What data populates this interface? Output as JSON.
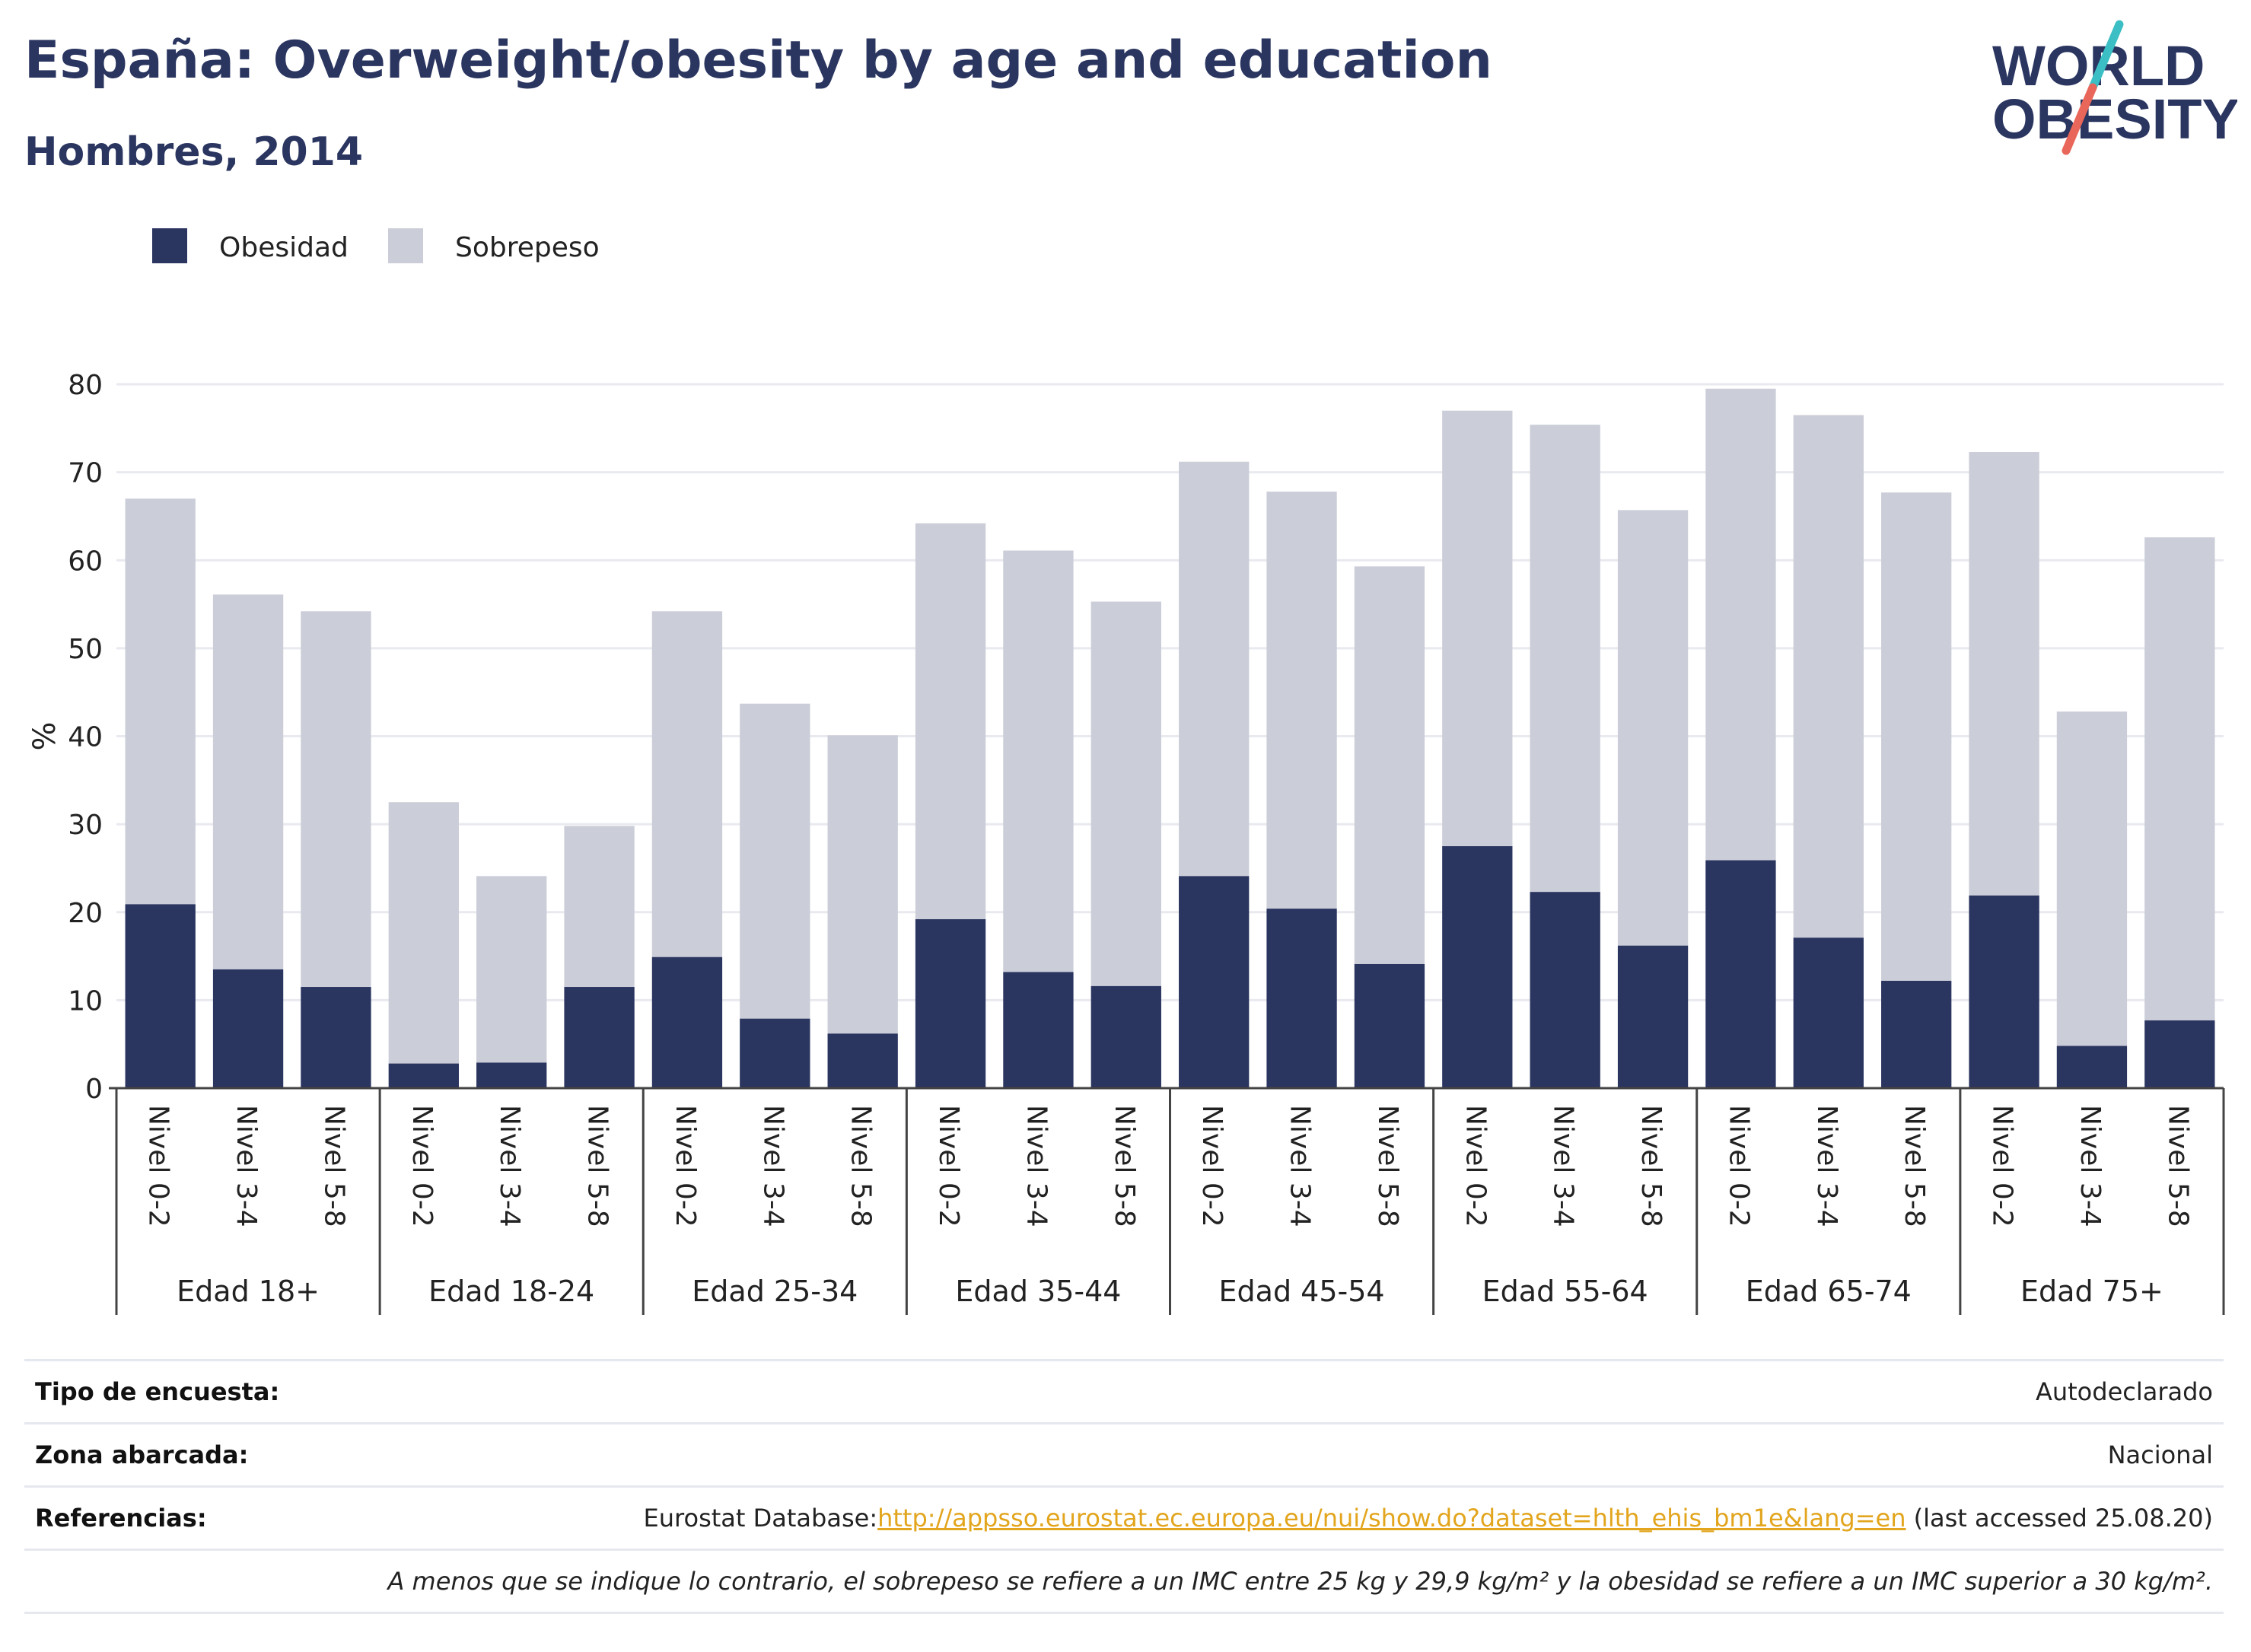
{
  "header": {
    "title": "España: Overweight/obesity by age and education",
    "subtitle": "Hombres, 2014"
  },
  "logo": {
    "line1": "WORLD",
    "line2": "OBESITY",
    "icon": "world-obesity-logo",
    "colors": {
      "text": "#2a3560",
      "slash_top": "#3bbfc4",
      "slash_bottom": "#e8665a"
    }
  },
  "chart_data": {
    "type": "bar",
    "stacked": true,
    "title": "",
    "xlabel": "",
    "ylabel": "%",
    "ylim": [
      0,
      80
    ],
    "yticks": [
      0,
      10,
      20,
      30,
      40,
      50,
      60,
      70,
      80
    ],
    "grid": true,
    "legend_position": "top-left",
    "groups": [
      "Edad 18+",
      "Edad 18-24",
      "Edad 25-34",
      "Edad 35-44",
      "Edad 45-54",
      "Edad 55-64",
      "Edad 65-74",
      "Edad 75+"
    ],
    "subcategories": [
      "Nivel 0-2",
      "Nivel 3-4",
      "Nivel 5-8"
    ],
    "series": [
      {
        "name": "Obesidad",
        "color": "#2a3560",
        "values": [
          [
            20.9,
            13.5,
            11.5
          ],
          [
            2.8,
            2.9,
            11.5
          ],
          [
            14.9,
            7.9,
            6.2
          ],
          [
            19.2,
            13.2,
            11.6
          ],
          [
            24.1,
            20.4,
            14.1
          ],
          [
            27.5,
            22.3,
            16.2
          ],
          [
            25.9,
            17.1,
            12.2
          ],
          [
            21.9,
            4.8,
            7.7
          ]
        ]
      },
      {
        "name": "Sobrepeso",
        "color": "#cbcdd8",
        "values": [
          [
            46.1,
            42.6,
            42.7
          ],
          [
            29.7,
            21.2,
            18.3
          ],
          [
            39.3,
            35.8,
            33.9
          ],
          [
            45.0,
            47.9,
            43.7
          ],
          [
            47.1,
            47.4,
            45.2
          ],
          [
            49.5,
            53.1,
            49.5
          ],
          [
            53.6,
            59.4,
            55.5
          ],
          [
            50.4,
            38.0,
            54.9
          ]
        ]
      }
    ]
  },
  "info": {
    "survey_type_label": "Tipo de encuesta:",
    "survey_type_value": "Autodeclarado",
    "area_label": "Zona abarcada:",
    "area_value": "Nacional",
    "references_label": "Referencias:",
    "references_prefix": "Eurostat Database:",
    "references_link": "http://appsso.eurostat.ec.europa.eu/nui/show.do?dataset=hlth_ehis_bm1e&lang=en",
    "references_suffix": " (last accessed 25.08.20)",
    "note": "A menos que se indique lo contrario, el sobrepeso se refiere a un IMC entre 25 kg y 29,9 kg/m² y la obesidad se refiere a un IMC superior a 30 kg/m²."
  }
}
